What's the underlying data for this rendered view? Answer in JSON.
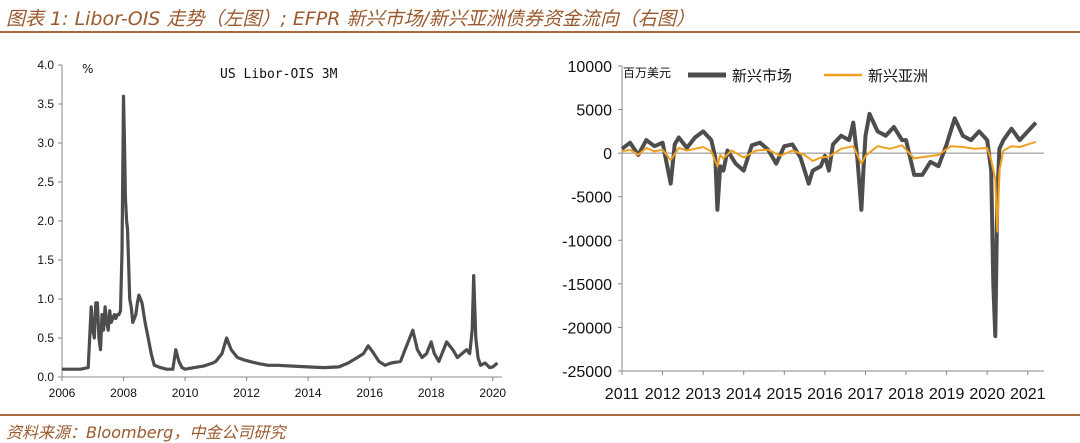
{
  "figure_title": "图表 1: Libor-OIS 走势（左图）; EFPR 新兴市场/新兴亚洲债券资金流向（右图）",
  "source": "资料来源：Bloomberg，中金公司研究",
  "colors": {
    "accent": "#a66a3e",
    "em": "#4d4d4d",
    "asia": "#f0a020",
    "axis": "#888888"
  },
  "chart_data": [
    {
      "type": "line",
      "title": "US Libor-OIS 3M",
      "unit_label": "%",
      "xlim": [
        2006,
        2020.3
      ],
      "ylim": [
        0,
        4
      ],
      "xticks": [
        "2006",
        "2008",
        "2010",
        "2012",
        "2014",
        "2016",
        "2018",
        "2020"
      ],
      "yticks": [
        "0.0",
        "0.5",
        "1.0",
        "1.5",
        "2.0",
        "2.5",
        "3.0",
        "3.5",
        "4.0"
      ],
      "series": [
        {
          "name": "US Libor-OIS 3M",
          "x": [
            2006.0,
            2006.3,
            2006.6,
            2006.85,
            2006.95,
            2007.0,
            2007.05,
            2007.1,
            2007.15,
            2007.2,
            2007.25,
            2007.3,
            2007.35,
            2007.4,
            2007.45,
            2007.5,
            2007.55,
            2007.6,
            2007.65,
            2007.7,
            2007.75,
            2007.8,
            2007.85,
            2007.9,
            2007.95,
            2008.0,
            2008.03,
            2008.06,
            2008.1,
            2008.13,
            2008.16,
            2008.2,
            2008.25,
            2008.3,
            2008.35,
            2008.4,
            2008.45,
            2008.5,
            2008.55,
            2008.6,
            2008.7,
            2008.8,
            2008.9,
            2009.0,
            2009.2,
            2009.4,
            2009.6,
            2009.7,
            2009.8,
            2009.9,
            2010.0,
            2010.3,
            2010.6,
            2010.9,
            2011.0,
            2011.2,
            2011.35,
            2011.5,
            2011.7,
            2011.9,
            2012.1,
            2012.4,
            2012.7,
            2013.0,
            2013.5,
            2014.0,
            2014.5,
            2015.0,
            2015.3,
            2015.6,
            2015.8,
            2015.95,
            2016.1,
            2016.3,
            2016.5,
            2016.7,
            2017.0,
            2017.2,
            2017.4,
            2017.55,
            2017.7,
            2017.85,
            2018.0,
            2018.1,
            2018.25,
            2018.35,
            2018.5,
            2018.7,
            2018.85,
            2019.0,
            2019.15,
            2019.25,
            2019.33,
            2019.38,
            2019.45,
            2019.52,
            2019.6,
            2019.75,
            2019.9,
            2020.0,
            2020.15
          ],
          "values": [
            0.1,
            0.1,
            0.1,
            0.12,
            0.9,
            0.6,
            0.5,
            0.95,
            0.95,
            0.5,
            0.35,
            0.8,
            0.6,
            0.9,
            0.7,
            0.6,
            0.85,
            0.7,
            0.75,
            0.8,
            0.75,
            0.8,
            0.8,
            0.85,
            1.6,
            3.6,
            3.0,
            2.3,
            2.0,
            1.9,
            1.5,
            1.0,
            0.9,
            0.7,
            0.75,
            0.8,
            0.95,
            1.05,
            1.0,
            0.95,
            0.7,
            0.5,
            0.3,
            0.15,
            0.12,
            0.1,
            0.1,
            0.35,
            0.2,
            0.12,
            0.1,
            0.12,
            0.14,
            0.18,
            0.2,
            0.3,
            0.5,
            0.35,
            0.25,
            0.22,
            0.2,
            0.17,
            0.15,
            0.15,
            0.14,
            0.13,
            0.12,
            0.13,
            0.18,
            0.25,
            0.3,
            0.4,
            0.32,
            0.2,
            0.15,
            0.18,
            0.2,
            0.4,
            0.6,
            0.35,
            0.25,
            0.3,
            0.45,
            0.3,
            0.2,
            0.3,
            0.45,
            0.35,
            0.25,
            0.3,
            0.35,
            0.3,
            0.6,
            1.3,
            0.5,
            0.25,
            0.15,
            0.18,
            0.12,
            0.13,
            0.18
          ]
        }
      ]
    },
    {
      "type": "line",
      "unit_label": "百万美元",
      "xlim": [
        2011,
        2021.4
      ],
      "ylim": [
        -25000,
        10000
      ],
      "xticks": [
        "2011",
        "2012",
        "2013",
        "2014",
        "2015",
        "2016",
        "2017",
        "2018",
        "2019",
        "2020",
        "2021"
      ],
      "yticks": [
        "10000",
        "5000",
        "0",
        "-5000",
        "-10000",
        "-15000",
        "-20000",
        "-25000"
      ],
      "series": [
        {
          "name": "新兴市场",
          "x": [
            2011.0,
            2011.2,
            2011.4,
            2011.6,
            2011.8,
            2012.0,
            2012.2,
            2012.3,
            2012.4,
            2012.6,
            2012.8,
            2013.0,
            2013.2,
            2013.3,
            2013.35,
            2013.42,
            2013.5,
            2013.6,
            2013.8,
            2014.0,
            2014.2,
            2014.4,
            2014.6,
            2014.8,
            2015.0,
            2015.2,
            2015.4,
            2015.6,
            2015.7,
            2015.9,
            2016.0,
            2016.1,
            2016.2,
            2016.4,
            2016.6,
            2016.7,
            2016.8,
            2016.9,
            2016.95,
            2017.0,
            2017.1,
            2017.3,
            2017.5,
            2017.7,
            2017.9,
            2018.0,
            2018.2,
            2018.4,
            2018.6,
            2018.8,
            2019.0,
            2019.2,
            2019.4,
            2019.6,
            2019.8,
            2020.0,
            2020.1,
            2020.15,
            2020.2,
            2020.25,
            2020.3,
            2020.4,
            2020.6,
            2020.8,
            2021.0,
            2021.2
          ],
          "values": [
            500,
            1200,
            -200,
            1500,
            800,
            1200,
            -3500,
            1000,
            1800,
            600,
            1800,
            2500,
            1500,
            -500,
            -6500,
            -1500,
            -2000,
            300,
            -1200,
            -2000,
            900,
            1200,
            400,
            -1200,
            800,
            1000,
            -500,
            -3500,
            -2000,
            -1500,
            -300,
            -2000,
            1000,
            2000,
            1500,
            3500,
            -500,
            -6500,
            -2000,
            2000,
            4500,
            2500,
            2000,
            3000,
            1500,
            1500,
            -2500,
            -2500,
            -1000,
            -1500,
            1000,
            4000,
            2000,
            1500,
            2500,
            1500,
            -2000,
            -15000,
            -21000,
            -5000,
            500,
            1500,
            2800,
            1500,
            2500,
            3500
          ]
        },
        {
          "name": "新兴亚洲",
          "x": [
            2011.0,
            2011.2,
            2011.4,
            2011.6,
            2011.8,
            2012.0,
            2012.2,
            2012.4,
            2012.6,
            2012.8,
            2013.0,
            2013.2,
            2013.35,
            2013.42,
            2013.5,
            2013.7,
            2014.0,
            2014.3,
            2014.6,
            2014.9,
            2015.2,
            2015.5,
            2015.7,
            2015.9,
            2016.1,
            2016.4,
            2016.7,
            2016.9,
            2017.0,
            2017.3,
            2017.6,
            2017.9,
            2018.2,
            2018.5,
            2018.8,
            2019.1,
            2019.4,
            2019.7,
            2020.0,
            2020.1,
            2020.2,
            2020.25,
            2020.3,
            2020.4,
            2020.6,
            2020.8,
            2021.0,
            2021.2
          ],
          "values": [
            200,
            400,
            -200,
            600,
            200,
            400,
            -800,
            600,
            300,
            500,
            700,
            200,
            -1500,
            -200,
            -600,
            300,
            -500,
            300,
            400,
            -300,
            300,
            -200,
            -900,
            -500,
            -400,
            500,
            800,
            -1200,
            -300,
            800,
            500,
            900,
            -600,
            -400,
            -200,
            800,
            700,
            500,
            600,
            -800,
            -3000,
            -9000,
            -2000,
            300,
            800,
            700,
            1000,
            1300
          ]
        }
      ]
    }
  ]
}
